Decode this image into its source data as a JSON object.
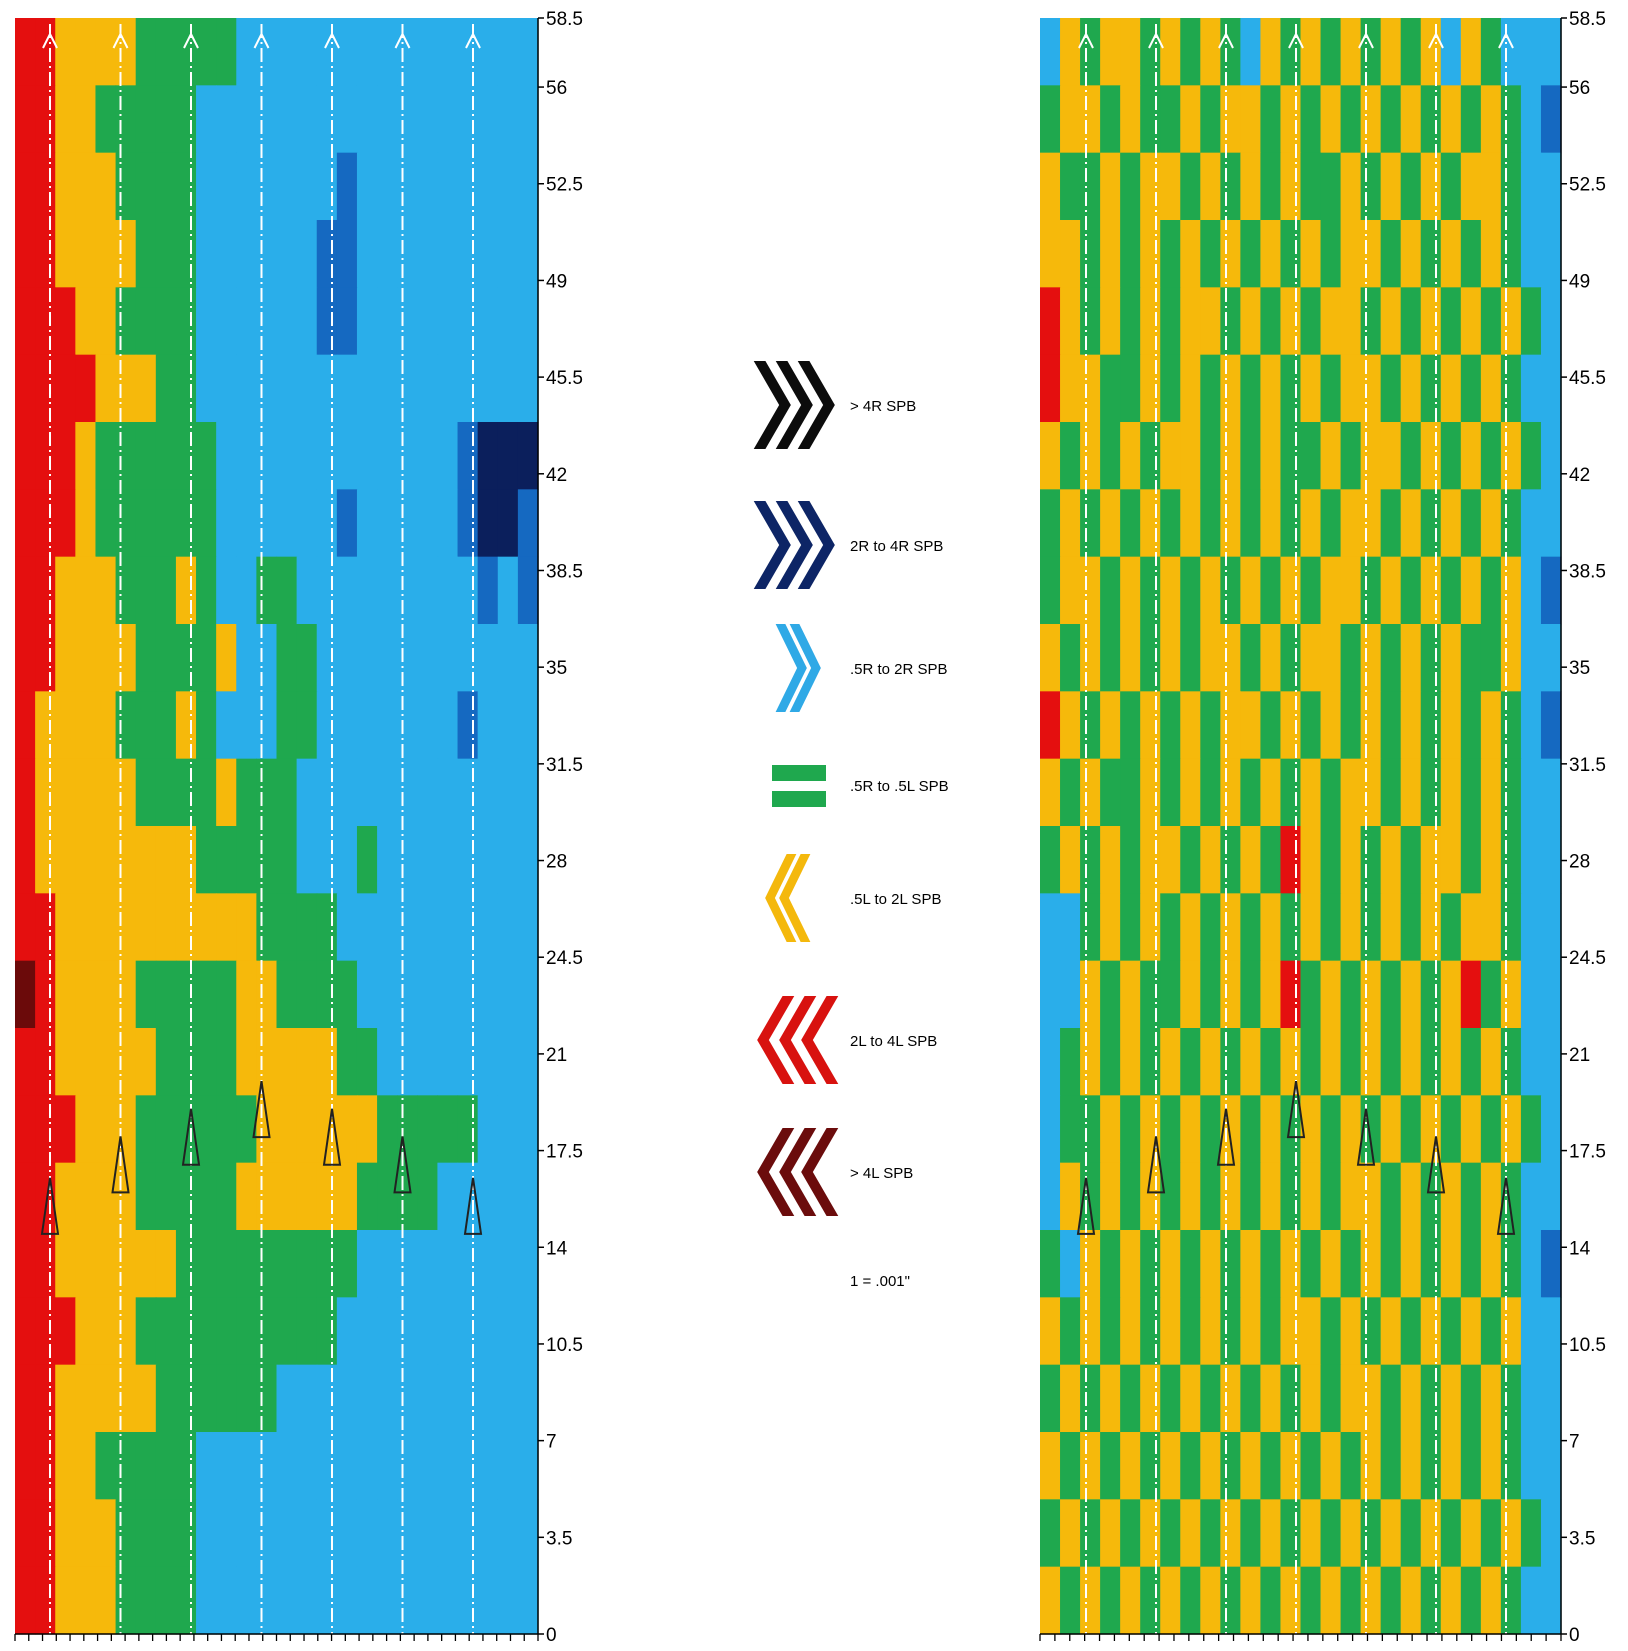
{
  "chart_data": [
    {
      "type": "heatmap",
      "panel": "left",
      "y_tick_labels": [
        "0",
        "3.5",
        "7",
        "10.5",
        "14",
        "17.5",
        "21",
        "24.5",
        "28",
        "31.5",
        "35",
        "38.5",
        "42",
        "45.5",
        "49",
        "52.5",
        "56",
        "58.5"
      ],
      "ylim": [
        0,
        58.5
      ],
      "x_ticks_count": 38,
      "vertical_marker_lines": 7,
      "marker_up_y": [
        15.5,
        17,
        18,
        19,
        18,
        17,
        15.5
      ],
      "colorscale": [
        "#6b0a0a",
        "#e40f0f",
        "#f6b90b",
        "#1fa84e",
        "#2aaeea",
        "#1569c1",
        "#0b1f5c"
      ],
      "grid_rows": 24,
      "grid": [
        "11222233333444444444444444",
        "11223333344444444444444444",
        "11222333344444445444444444",
        "11222233344444455444444444",
        "11122333344444455444444444",
        "11112223344444444444444444",
        "11123333334444444444445666",
        "11123333334444445444445665",
        "11222333234433444444444545",
        "11222233332443344444444444",
        "12222333234443344444445444",
        "12222233332333444444444444",
        "12222222233333444344444444",
        "11222222222233334444444444",
        "01222233333223333444444444",
        "11222223333222223344444444",
        "11122233333322222233333444",
        "11222233333222222333344444",
        "11222222333333333444444444",
        "11122233333333334444444444",
        "11222223333334444444444444",
        "11223333344444444444444444",
        "11222333344444444444444444",
        "11222333344444444444444444"
      ]
    },
    {
      "type": "heatmap",
      "panel": "right",
      "y_tick_labels": [
        "0",
        "3.5",
        "7",
        "10.5",
        "14",
        "17.5",
        "21",
        "24.5",
        "28",
        "31.5",
        "35",
        "38.5",
        "42",
        "45.5",
        "49",
        "52.5",
        "56",
        "58.5"
      ],
      "ylim": [
        0,
        58.5
      ],
      "x_ticks_count": 35,
      "vertical_marker_lines": 7,
      "marker_up_y": [
        15.5,
        17,
        18,
        19,
        18,
        17,
        15.5
      ],
      "colorscale": [
        "#6b0a0a",
        "#e40f0f",
        "#f6b90b",
        "#1fa84e",
        "#2aaeea",
        "#1569c1",
        "#0b1f5c"
      ],
      "grid_rows": 24,
      "grid": [
        "42322323234232323232423444",
        "32232332322323232323232345",
        "23323223232323323232322344",
        "22323232323232322323232344",
        "12323232232323223232323234",
        "12233232323232322323232344",
        "23232322323233232232323234",
        "32323232323232322323232344",
        "32232323232323223232323245",
        "23232323223232232323233244",
        "12323232322323232323232345",
        "23233232323232322323232344",
        "32323223232312323232232344",
        "44323232323232323232322344",
        "44232332323213232323213244",
        "43232323232323232323232344",
        "43323232323232323232323234",
        "42323232323232322323232344",
        "34232323232323232323232345",
        "23232323232322323232323244",
        "32323232323232322323232344",
        "23232323232323232323232344",
        "32323232323232323232323234",
        "23232323232323232323232344"
      ]
    }
  ],
  "legend": {
    "items": [
      {
        "label": "> 4R SPB",
        "color": "#0c0c0c",
        "icon": "triple-chevron-right-icon"
      },
      {
        "label": "2R to 4R SPB",
        "color": "#0d2566",
        "icon": "triple-chevron-right-icon"
      },
      {
        "label": ".5R to 2R SPB",
        "color": "#2fa9e6",
        "icon": "double-chevron-right-icon"
      },
      {
        "label": ".5R to .5L SPB",
        "color": "#1fa84e",
        "icon": "equals-bars-icon"
      },
      {
        "label": ".5L to 2L SPB",
        "color": "#f4b80c",
        "icon": "double-chevron-left-icon"
      },
      {
        "label": "2L to 4L SPB",
        "color": "#d8120f",
        "icon": "triple-chevron-left-icon"
      },
      {
        "label": "> 4L SPB",
        "color": "#6b0c0c",
        "icon": "triple-chevron-left-icon"
      }
    ],
    "note": "1 = .001\""
  }
}
